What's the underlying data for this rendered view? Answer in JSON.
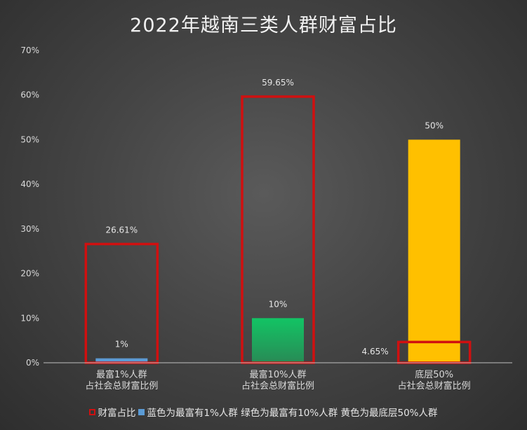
{
  "chart_data": {
    "type": "bar",
    "title": "2022年越南三类人群财富占比",
    "categories": [
      [
        "最富1%人群",
        "占社会总财富比例"
      ],
      [
        "最富10%人群",
        "占社会总财富比例"
      ],
      [
        "底层50%",
        "占社会总财富比例"
      ]
    ],
    "series": [
      {
        "name": "财富占比",
        "style": "outline",
        "color": "#d01010",
        "values": [
          26.61,
          59.65,
          4.65
        ],
        "labels": [
          "26.61%",
          "59.65%",
          "4.65%"
        ]
      },
      {
        "name": "蓝色为最富有1%人群  绿色为最富有10%人群  黄色为最底层50%人群",
        "style": "fill",
        "colors": [
          "#5b9bd5",
          "#12c464",
          "#ffc000"
        ],
        "values": [
          1,
          10,
          50
        ],
        "labels": [
          "1%",
          "10%",
          "50%"
        ]
      }
    ],
    "ylim": [
      0,
      70
    ],
    "yticks": [
      "0%",
      "10%",
      "20%",
      "30%",
      "40%",
      "50%",
      "60%",
      "70%"
    ],
    "grid": false,
    "legend": "bottom"
  }
}
